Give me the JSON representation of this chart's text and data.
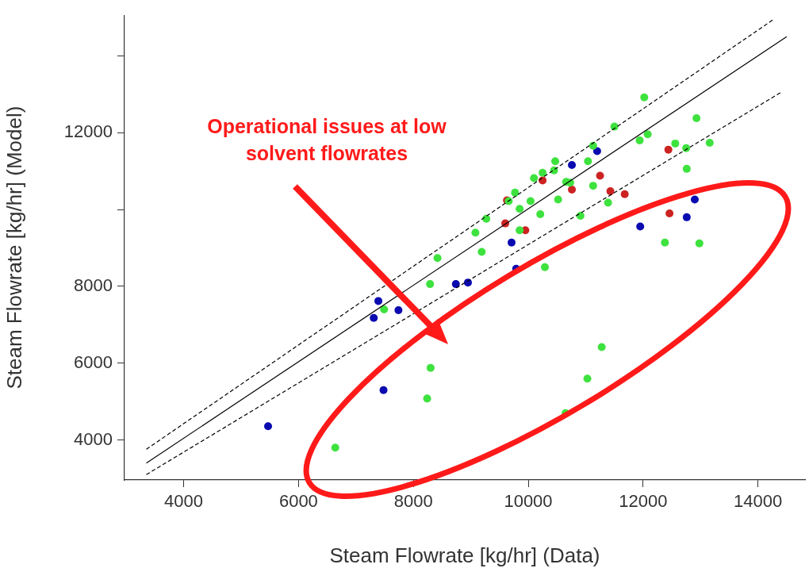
{
  "chart_data": {
    "type": "scatter",
    "xlabel": "Steam Flowrate [kg/hr] (Data)",
    "ylabel": "Steam Flowrate [kg/hr] (Model)",
    "xlim": [
      2970,
      14820
    ],
    "ylim": [
      2960,
      15060
    ],
    "xticks": [
      4000,
      6000,
      8000,
      10000,
      12000,
      14000
    ],
    "yticks": [
      4000,
      6000,
      8000,
      {
        "value": 10000,
        "label": null
      },
      12000,
      {
        "value": 14000,
        "label": null
      }
    ],
    "grid": false,
    "legend": false,
    "marker": "circle",
    "annotations": [
      "Operational issues at low solvent flowrates"
    ],
    "series": [
      {
        "type": "line",
        "color": "#000000",
        "line_style": "solid",
        "marker": "none",
        "x": [
          3350,
          14500
        ],
        "values": [
          3400,
          14500
        ]
      },
      {
        "type": "line",
        "color": "#000000",
        "line_style": "dashed",
        "marker": "none",
        "x": [
          3350,
          14280
        ],
        "values": [
          3760,
          14960
        ]
      },
      {
        "type": "line",
        "color": "#000000",
        "line_style": "dashed",
        "marker": "none",
        "x": [
          3350,
          14410
        ],
        "values": [
          3100,
          13060
        ]
      },
      {
        "color": "#3ee23e",
        "x": [
          12020,
          12930,
          11500,
          12080,
          11940,
          12560,
          13160,
          11130,
          11040,
          10470,
          10450,
          10250,
          10100,
          10660,
          10730,
          11130,
          9770,
          9660,
          10040,
          10520,
          9850,
          9270,
          10210,
          10910,
          11390,
          12750,
          12760,
          9080,
          9850,
          9190,
          8420,
          10290,
          12380,
          12980,
          8290,
          7490,
          8300,
          11280,
          8240,
          11030,
          10650,
          6640
        ],
        "values": [
          12920,
          12380,
          12160,
          11960,
          11800,
          11720,
          11740,
          11660,
          11260,
          11260,
          11020,
          10960,
          10820,
          10720,
          10700,
          10620,
          10440,
          10220,
          10220,
          10260,
          10020,
          9760,
          9880,
          9840,
          10180,
          11600,
          11060,
          9400,
          9460,
          8900,
          8740,
          8500,
          9140,
          9120,
          8060,
          7400,
          5880,
          6420,
          5080,
          5600,
          4700,
          3800
        ]
      },
      {
        "color": "#0a0ab0",
        "x": [
          11200,
          10760,
          11950,
          12760,
          12900,
          9710,
          9790,
          8740,
          8950,
          7390,
          7310,
          7740,
          7480,
          5470
        ],
        "values": [
          11520,
          11160,
          9560,
          9800,
          10260,
          9140,
          8460,
          8060,
          8100,
          7620,
          7180,
          7380,
          5300,
          4360
        ]
      },
      {
        "color": "#cc2222",
        "x": [
          9630,
          9600,
          10250,
          9950,
          10760,
          11250,
          11430,
          11680,
          12440,
          12460
        ],
        "values": [
          10240,
          9640,
          10760,
          9460,
          10520,
          10880,
          10480,
          10400,
          11560,
          9900
        ]
      }
    ]
  }
}
